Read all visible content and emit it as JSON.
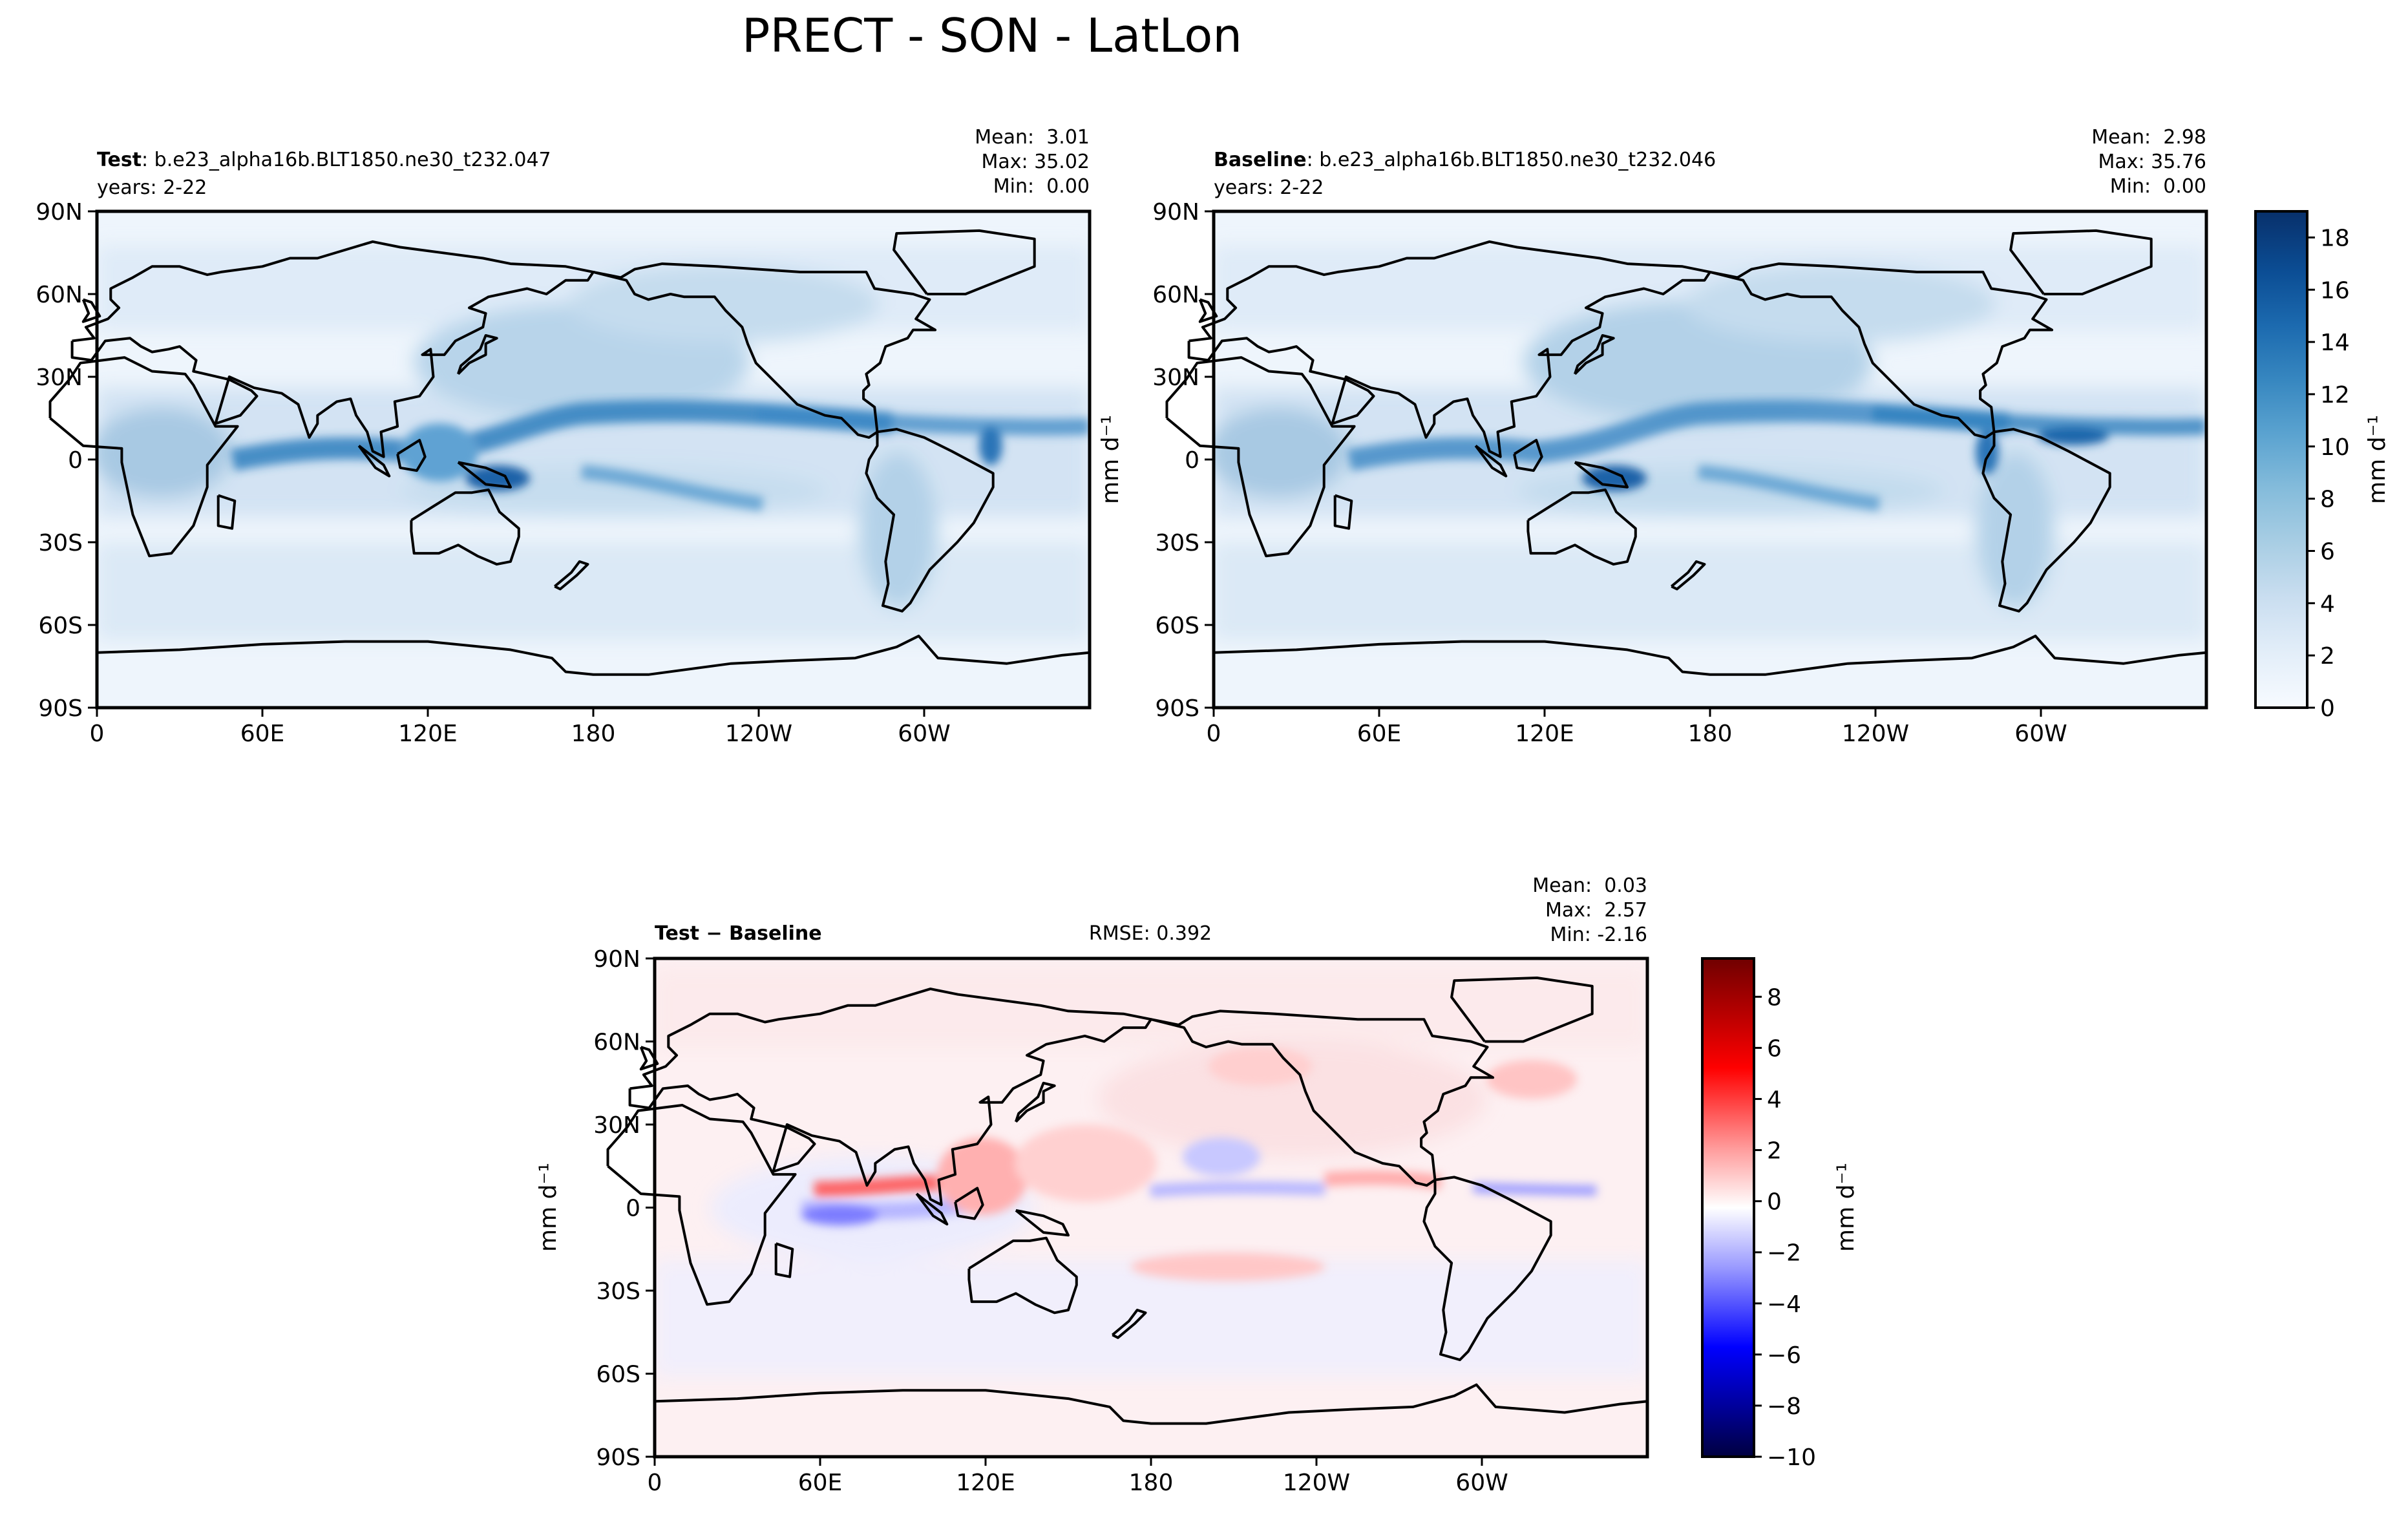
{
  "figure_title": "PRECT - SON - LatLon",
  "panels": {
    "test": {
      "label_bold": "Test",
      "label_rest": ": b.e23_alpha16b.BLT1850.ne30_t232.047",
      "years": "years: 2-22",
      "stats": [
        "Mean:  3.01",
        "Max: 35.02",
        "Min:  0.00"
      ]
    },
    "baseline": {
      "label_bold": "Baseline",
      "label_rest": ": b.e23_alpha16b.BLT1850.ne30_t232.046",
      "years": "years: 2-22",
      "stats": [
        "Mean:  2.98",
        "Max: 35.76",
        "Min:  0.00"
      ]
    },
    "diff": {
      "label_bold": "Test − Baseline",
      "rmse": "RMSE: 0.392",
      "stats": [
        "Mean:  0.03",
        "Max:  2.57",
        "Min: -2.16"
      ]
    }
  },
  "units": "mm d⁻¹",
  "colors": {
    "ocean_low": "#f1f7fd",
    "precip_scale": [
      "#f7fbff",
      "#deebf7",
      "#c6dbef",
      "#9ecae1",
      "#6baed6",
      "#4292c6",
      "#2171b5",
      "#08519c",
      "#08306b"
    ],
    "diff_scale": [
      "#000055",
      "#0000ff",
      "#9a9aff",
      "#f6f6ff",
      "#fff4f4",
      "#ff9a9a",
      "#ff0000",
      "#7a0000"
    ]
  },
  "chart_data": [
    {
      "type": "heatmap",
      "name": "Test",
      "variable": "PRECT",
      "season": "SON",
      "x_ticks": [
        "0",
        "60E",
        "120E",
        "180",
        "120W",
        "60W"
      ],
      "y_ticks": [
        "90N",
        "60N",
        "30N",
        "0",
        "30S",
        "60S",
        "90S"
      ],
      "xlim": [
        0,
        360
      ],
      "ylim": [
        -90,
        90
      ],
      "mean": 3.01,
      "max": 35.02,
      "min": 0.0,
      "colorbar": {
        "range": [
          0,
          19
        ],
        "ticks": [
          0,
          2,
          4,
          6,
          8,
          10,
          12,
          14,
          16,
          18
        ],
        "label": "mm d⁻¹"
      }
    },
    {
      "type": "heatmap",
      "name": "Baseline",
      "variable": "PRECT",
      "season": "SON",
      "x_ticks": [
        "0",
        "60E",
        "120E",
        "180",
        "120W",
        "60W"
      ],
      "y_ticks": [
        "90N",
        "60N",
        "30N",
        "0",
        "30S",
        "60S",
        "90S"
      ],
      "xlim": [
        0,
        360
      ],
      "ylim": [
        -90,
        90
      ],
      "mean": 2.98,
      "max": 35.76,
      "min": 0.0,
      "colorbar": {
        "range": [
          0,
          19
        ],
        "ticks": [
          0,
          2,
          4,
          6,
          8,
          10,
          12,
          14,
          16,
          18
        ],
        "label": "mm d⁻¹"
      }
    },
    {
      "type": "heatmap",
      "name": "Test − Baseline",
      "variable": "PRECT",
      "season": "SON",
      "x_ticks": [
        "0",
        "60E",
        "120E",
        "180",
        "120W",
        "60W"
      ],
      "y_ticks": [
        "90N",
        "60N",
        "30N",
        "0",
        "30S",
        "60S",
        "90S"
      ],
      "xlim": [
        0,
        360
      ],
      "ylim": [
        -90,
        90
      ],
      "rmse": 0.392,
      "mean": 0.03,
      "max": 2.57,
      "min": -2.16,
      "colorbar": {
        "range": [
          -10,
          9.5
        ],
        "ticks": [
          "8",
          "6",
          "4",
          "2",
          "0",
          "−2",
          "−4",
          "−6",
          "−8",
          "−10"
        ],
        "label": "mm d⁻¹"
      }
    }
  ]
}
